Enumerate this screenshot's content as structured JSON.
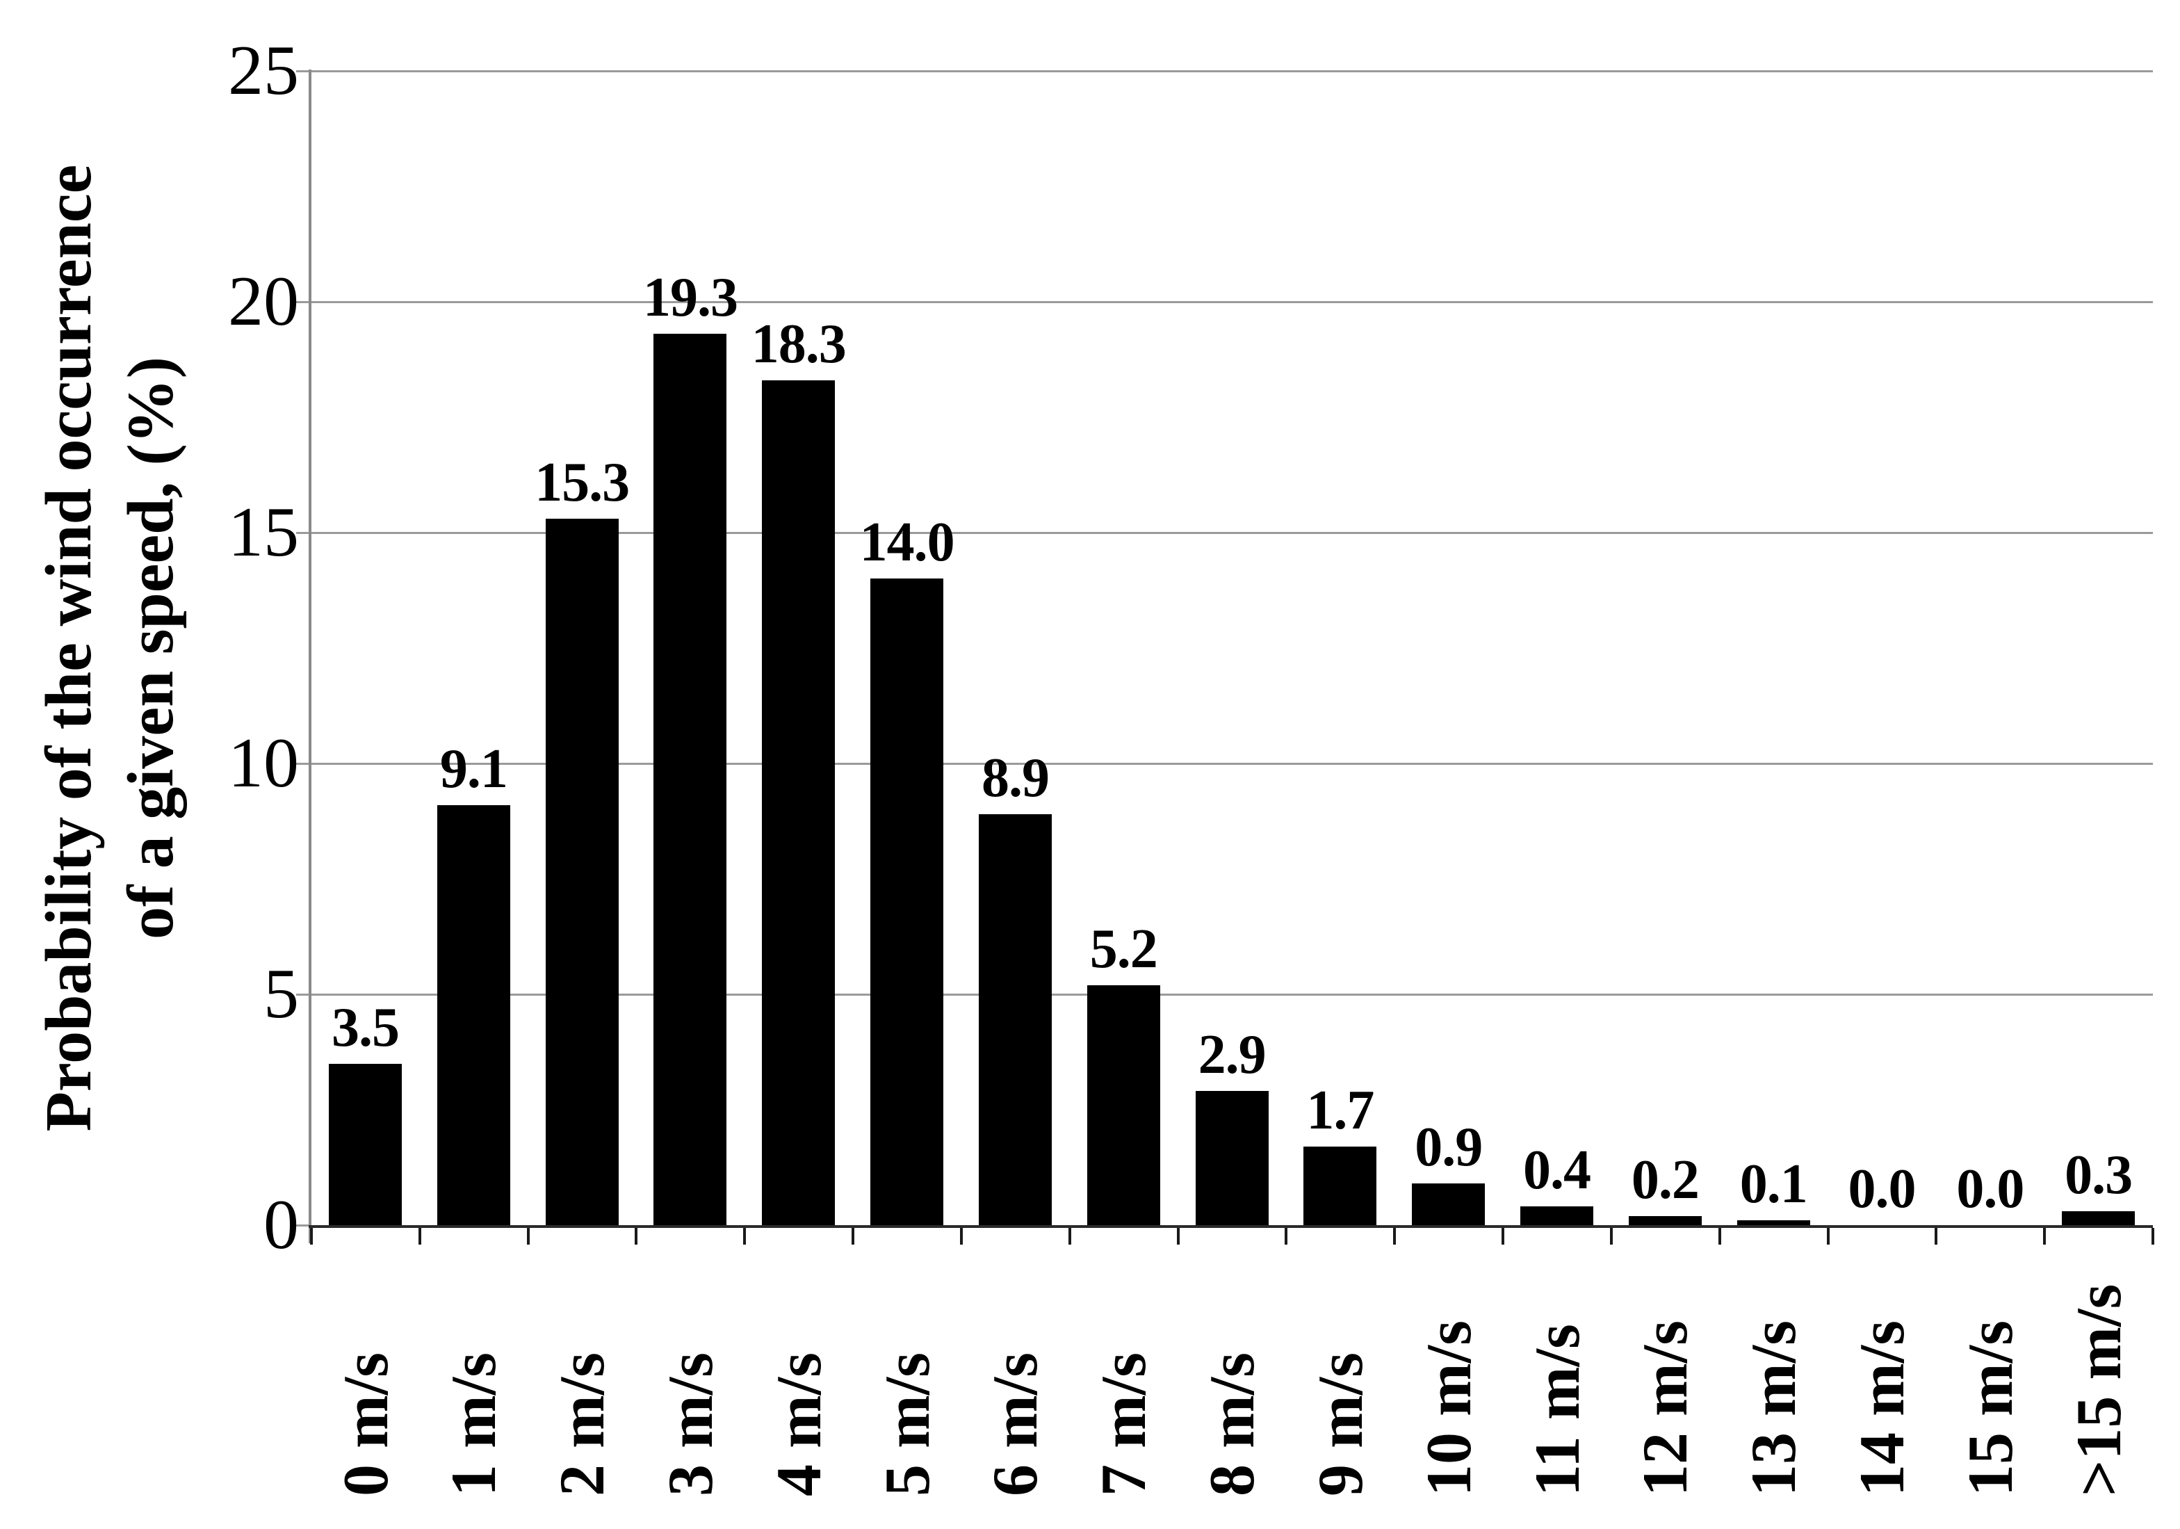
{
  "chart_data": {
    "type": "bar",
    "title": "",
    "categories": [
      "0 m/s",
      "1 m/s",
      "2 m/s",
      "3 m/s",
      "4 m/s",
      "5 m/s",
      "6 m/s",
      "7 m/s",
      "8 m/s",
      "9 m/s",
      "10 m/s",
      "11 m/s",
      "12 m/s",
      "13 m/s",
      "14 m/s",
      "15 m/s",
      ">15 m/s"
    ],
    "values": [
      3.5,
      9.1,
      15.3,
      19.3,
      18.3,
      14.0,
      8.9,
      5.2,
      2.9,
      1.7,
      0.9,
      0.4,
      0.2,
      0.1,
      0.0,
      0.0,
      0.3
    ],
    "value_labels": [
      "3.5",
      "9.1",
      "15.3",
      "19.3",
      "18.3",
      "14.0",
      "8.9",
      "5.2",
      "2.9",
      "1.7",
      "0.9",
      "0.4",
      "0.2",
      "0.1",
      "0.0",
      "0.0",
      "0.3"
    ],
    "ylabel_line1": "Probability of the wind occurrence",
    "ylabel_line2": "of a given speed, (%)",
    "xlabel": "",
    "ylim": [
      0,
      25
    ],
    "ytick_values": [
      0,
      5,
      10,
      15,
      20,
      25
    ],
    "ytick_labels": [
      "0",
      "5",
      "10",
      "15",
      "20",
      "25"
    ],
    "grid": "horizontal",
    "legend": "none",
    "bar_color": "#000000",
    "gridline_color": "#9a9a9a",
    "value_label_position": "above-bar"
  }
}
